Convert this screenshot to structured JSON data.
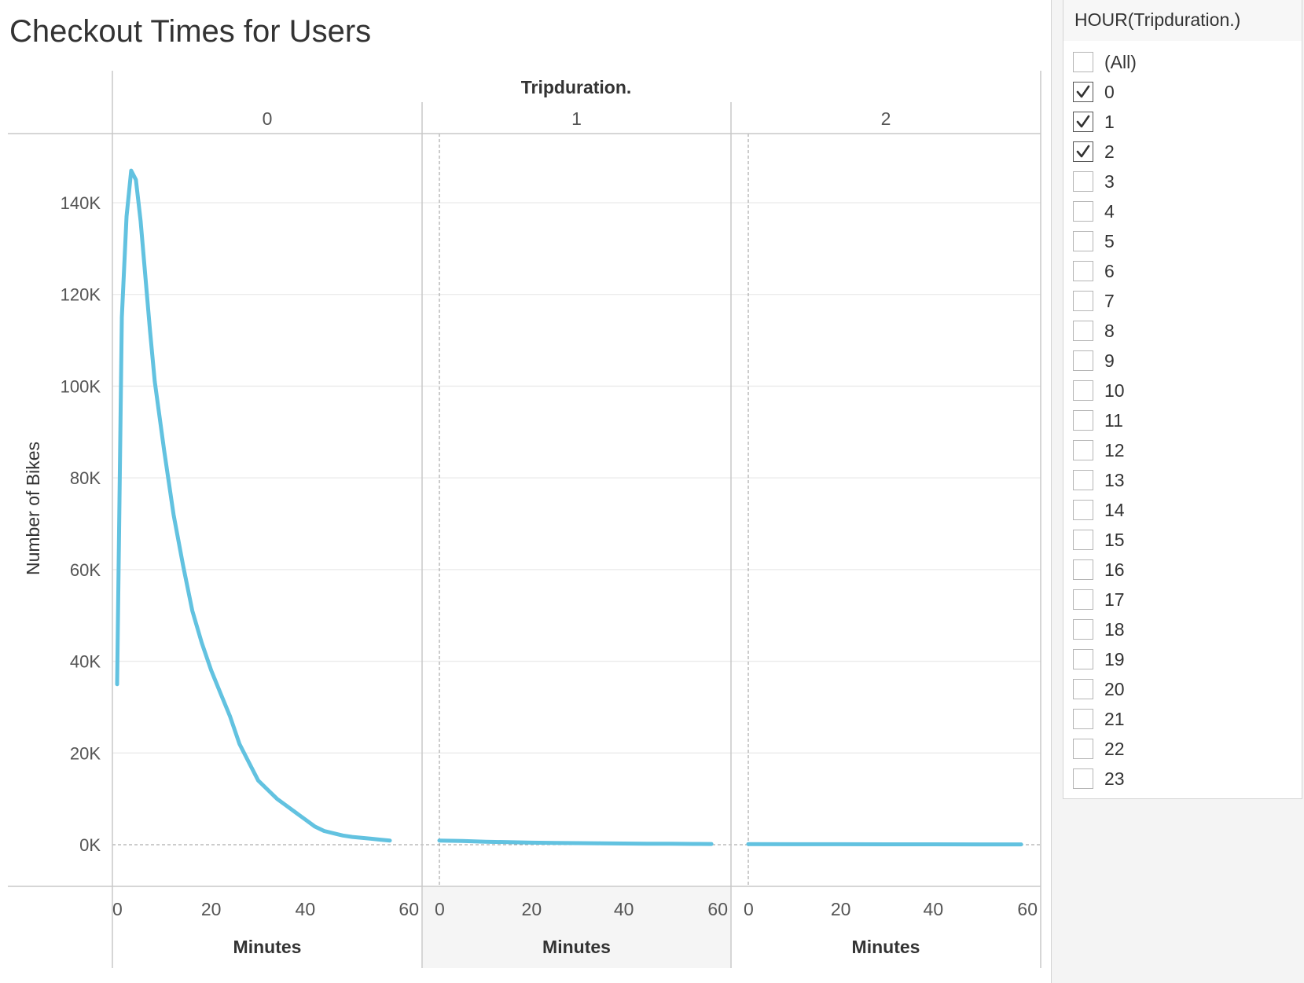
{
  "title": "Checkout Times for Users",
  "sidebar": {
    "filter_title": "HOUR(Tripduration.)",
    "items": [
      {
        "label": "(All)",
        "checked": false
      },
      {
        "label": "0",
        "checked": true
      },
      {
        "label": "1",
        "checked": true
      },
      {
        "label": "2",
        "checked": true
      },
      {
        "label": "3",
        "checked": false
      },
      {
        "label": "4",
        "checked": false
      },
      {
        "label": "5",
        "checked": false
      },
      {
        "label": "6",
        "checked": false
      },
      {
        "label": "7",
        "checked": false
      },
      {
        "label": "8",
        "checked": false
      },
      {
        "label": "9",
        "checked": false
      },
      {
        "label": "10",
        "checked": false
      },
      {
        "label": "11",
        "checked": false
      },
      {
        "label": "12",
        "checked": false
      },
      {
        "label": "13",
        "checked": false
      },
      {
        "label": "14",
        "checked": false
      },
      {
        "label": "15",
        "checked": false
      },
      {
        "label": "16",
        "checked": false
      },
      {
        "label": "17",
        "checked": false
      },
      {
        "label": "18",
        "checked": false
      },
      {
        "label": "19",
        "checked": false
      },
      {
        "label": "20",
        "checked": false
      },
      {
        "label": "21",
        "checked": false
      },
      {
        "label": "22",
        "checked": false
      },
      {
        "label": "23",
        "checked": false
      }
    ]
  },
  "chart_data": {
    "type": "line",
    "title": "Checkout Times for Users",
    "column_header": "Tripduration.",
    "ylabel": "Number of Bikes",
    "xlabel": "Minutes",
    "ylim": [
      0,
      152000
    ],
    "xlim": [
      0,
      60
    ],
    "yticks": [
      0,
      20000,
      40000,
      60000,
      80000,
      100000,
      120000,
      140000
    ],
    "ytick_labels": [
      "0K",
      "20K",
      "40K",
      "60K",
      "80K",
      "100K",
      "120K",
      "140K"
    ],
    "xticks": [
      0,
      20,
      40,
      60
    ],
    "xtick_labels": [
      "0",
      "20",
      "40",
      "60"
    ],
    "grid": true,
    "line_color": "#62c2e0",
    "panels": [
      {
        "label": "0",
        "x": [
          0,
          1,
          2,
          3,
          4,
          5,
          6,
          7,
          8,
          10,
          12,
          14,
          16,
          18,
          20,
          22,
          24,
          26,
          28,
          30,
          32,
          34,
          36,
          38,
          40,
          42,
          44,
          46,
          48,
          50,
          52,
          54,
          56,
          58
        ],
        "y": [
          35000,
          115000,
          137000,
          147000,
          145000,
          136000,
          124000,
          112000,
          101000,
          86000,
          72000,
          61000,
          51000,
          44000,
          38000,
          33000,
          28000,
          22000,
          18000,
          14000,
          12000,
          10000,
          8500,
          7000,
          5500,
          4000,
          3000,
          2500,
          2000,
          1700,
          1500,
          1300,
          1100,
          900
        ]
      },
      {
        "label": "1",
        "x": [
          0,
          5,
          10,
          15,
          20,
          25,
          30,
          35,
          40,
          45,
          50,
          55,
          59
        ],
        "y": [
          900,
          800,
          650,
          550,
          450,
          400,
          350,
          300,
          250,
          230,
          200,
          170,
          150
        ]
      },
      {
        "label": "2",
        "x": [
          0,
          10,
          20,
          30,
          40,
          50,
          59
        ],
        "y": [
          130,
          110,
          100,
          90,
          80,
          70,
          60
        ]
      }
    ]
  }
}
